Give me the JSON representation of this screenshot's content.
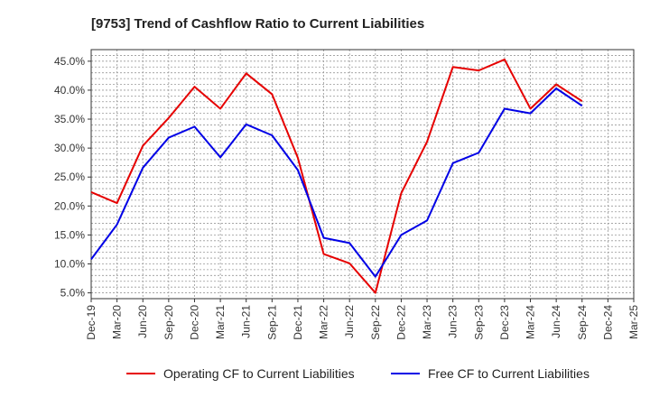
{
  "chart_data": {
    "type": "line",
    "title": "[9753]  Trend of Cashflow Ratio to Current Liabilities",
    "xlabel": "",
    "ylabel": "",
    "x": [
      "Dec-19",
      "Mar-20",
      "Jun-20",
      "Sep-20",
      "Dec-20",
      "Mar-21",
      "Jun-21",
      "Sep-21",
      "Dec-21",
      "Mar-22",
      "Jun-22",
      "Sep-22",
      "Dec-22",
      "Mar-23",
      "Jun-23",
      "Sep-23",
      "Dec-23",
      "Mar-24",
      "Jun-24",
      "Sep-24",
      "Dec-24",
      "Mar-25"
    ],
    "ylim": [
      4.0,
      47.0
    ],
    "yticks": [
      5.0,
      10.0,
      15.0,
      20.0,
      25.0,
      30.0,
      35.0,
      40.0,
      45.0
    ],
    "ytick_labels": [
      "5.0%",
      "10.0%",
      "15.0%",
      "20.0%",
      "25.0%",
      "30.0%",
      "35.0%",
      "40.0%",
      "45.0%"
    ],
    "grid": true,
    "legend_position": "bottom",
    "series": [
      {
        "name": "Operating CF to Current Liabilities",
        "color": "#e60000",
        "values": [
          22.4,
          20.5,
          30.4,
          35.2,
          40.6,
          36.8,
          42.9,
          39.3,
          28.3,
          11.7,
          10.1,
          5.0,
          22.2,
          31.1,
          44.0,
          43.4,
          45.3,
          36.8,
          41.0,
          38.1,
          null,
          null
        ]
      },
      {
        "name": "Free CF to Current Liabilities",
        "color": "#0000e6",
        "values": [
          10.8,
          16.8,
          26.6,
          31.8,
          33.7,
          28.4,
          34.1,
          32.2,
          26.2,
          14.5,
          13.6,
          7.8,
          15.0,
          17.5,
          27.4,
          29.2,
          36.8,
          36.0,
          40.3,
          37.3,
          null,
          null
        ]
      }
    ]
  }
}
